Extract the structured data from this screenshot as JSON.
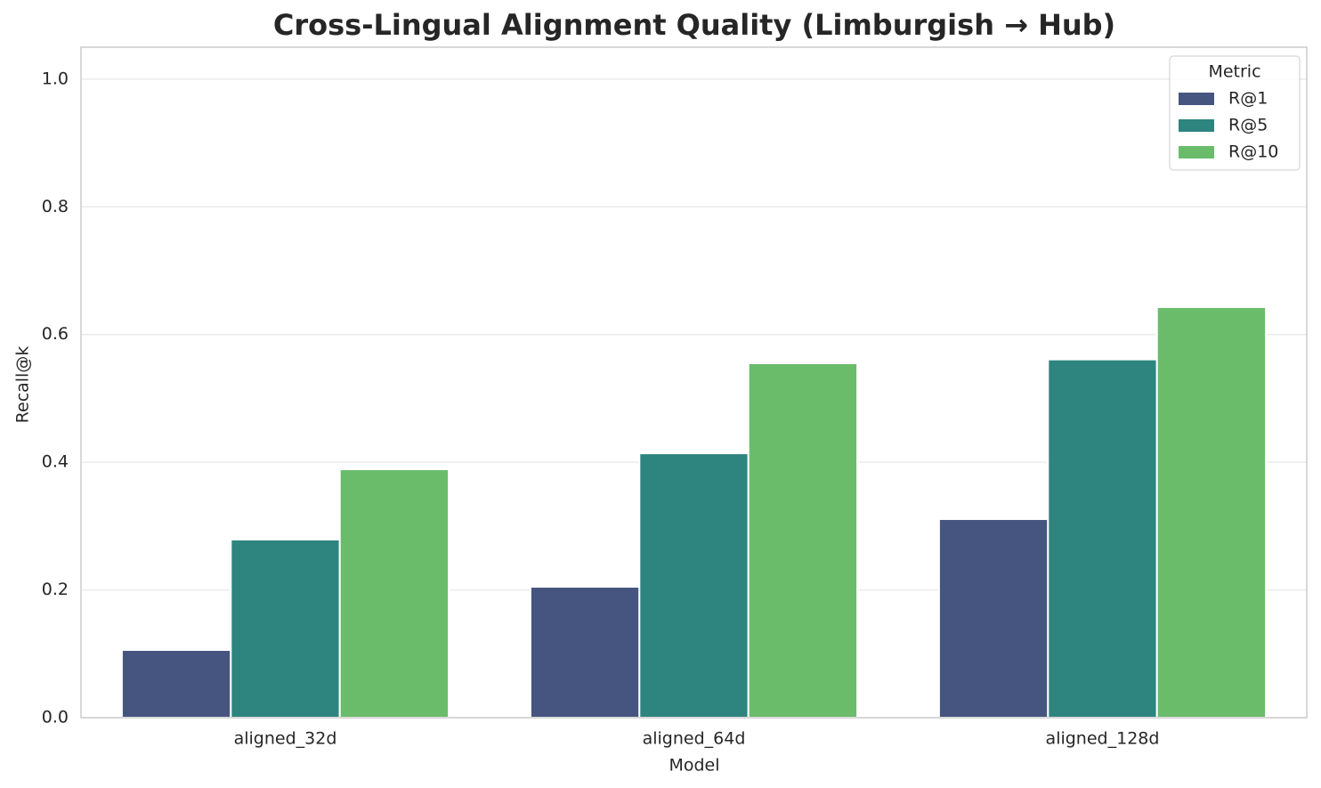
{
  "chart_data": {
    "type": "grouped_bar",
    "title": "Cross-Lingual Alignment Quality (Limburgish → Hub)",
    "x_label": "Model",
    "y_label": "Recall@k",
    "categories": [
      "aligned_32d",
      "aligned_64d",
      "aligned_128d"
    ],
    "legend_title": "Metric",
    "legend_position": "upper right",
    "series": [
      {
        "name": "R@1",
        "color": "#46557f",
        "values": [
          0.106,
          0.205,
          0.311
        ]
      },
      {
        "name": "R@5",
        "color": "#2e847f",
        "values": [
          0.279,
          0.414,
          0.561
        ]
      },
      {
        "name": "R@10",
        "color": "#6abc6b",
        "values": [
          0.389,
          0.555,
          0.643
        ]
      }
    ],
    "ylim": [
      0,
      1.05
    ],
    "yticks": [
      {
        "value": 0,
        "label": "0.0"
      },
      0.2,
      0.4,
      0.6,
      0.8,
      {
        "value": 1,
        "label": "1.0"
      }
    ],
    "grid": true
  }
}
